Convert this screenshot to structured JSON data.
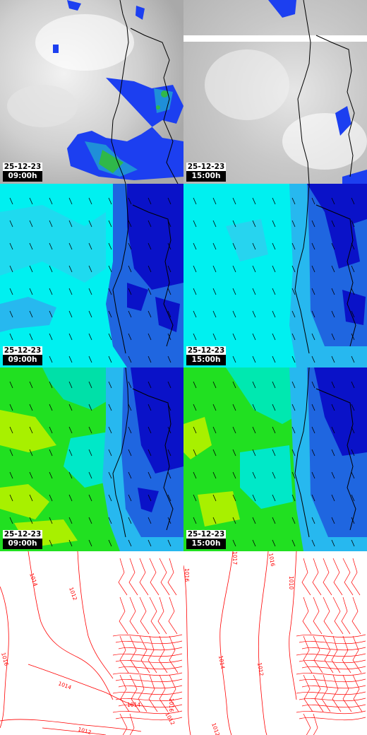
{
  "colors": {
    "cloud_gray": "#bdbdbd",
    "precip_blue": "#1c3ff0",
    "precip_green": "#2fb84a",
    "wind_cyan": "#00f0f0",
    "wind_sky": "#27b8ef",
    "wind_blue": "#1f66e0",
    "wind_dark": "#0a12c8",
    "gust_green": "#21e021",
    "gust_lime": "#a8f000",
    "pressure_red": "#ff0000"
  },
  "rows": [
    {
      "layer": "clouds-precipitation",
      "panels": [
        {
          "date": "25-12-23",
          "time": "09:00h"
        },
        {
          "date": "25-12-23",
          "time": "15:00h"
        }
      ]
    },
    {
      "layer": "wind",
      "panels": [
        {
          "date": "25-12-23",
          "time": "09:00h"
        },
        {
          "date": "25-12-23",
          "time": "15:00h"
        }
      ]
    },
    {
      "layer": "wind-gusts",
      "panels": [
        {
          "date": "25-12-23",
          "time": "09:00h"
        },
        {
          "date": "25-12-23",
          "time": "15:00h"
        }
      ]
    },
    {
      "layer": "pressure",
      "panels": [
        {
          "date": "",
          "time": ""
        },
        {
          "date": "",
          "time": ""
        }
      ]
    }
  ],
  "isobar_labels_left": [
    "1014",
    "1012",
    "1016",
    "1014",
    "1014",
    "1016",
    "1012",
    "1012"
  ],
  "isobar_labels_right": [
    "1016",
    "1017",
    "1016",
    "1014",
    "1012",
    "1010",
    "1012"
  ]
}
